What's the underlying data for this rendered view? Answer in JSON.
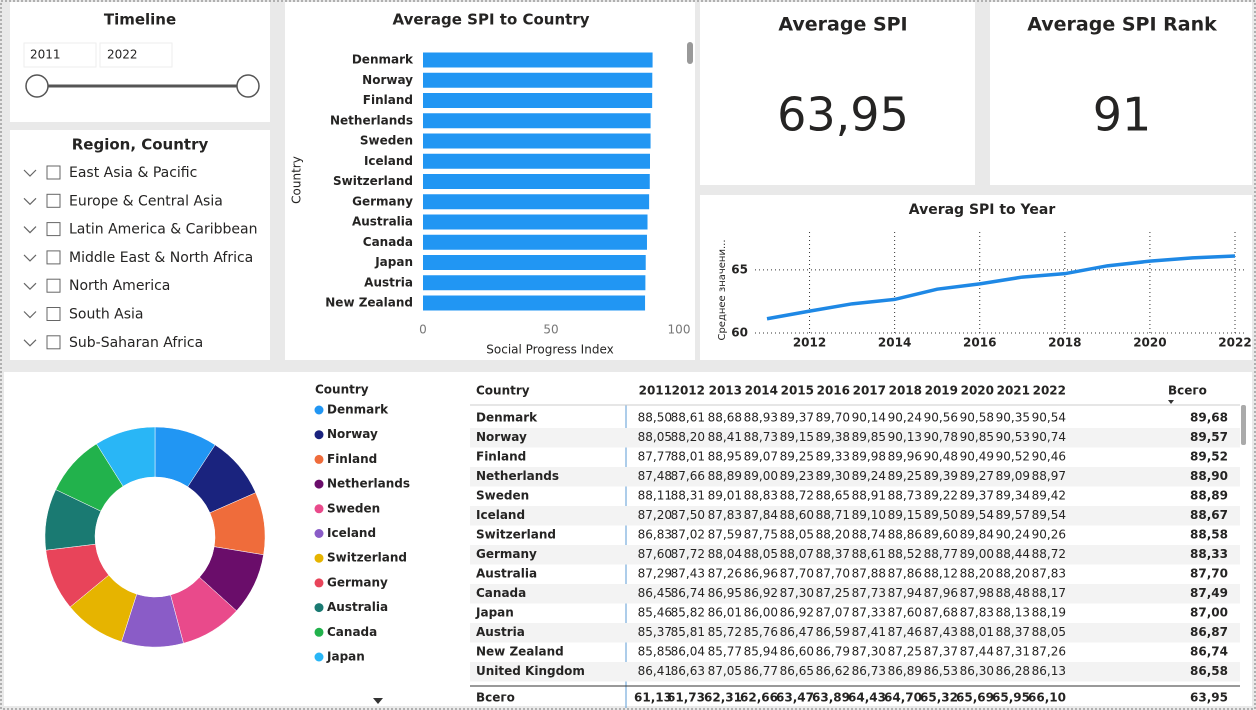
{
  "timeline": {
    "title": "Timeline",
    "start": "2011",
    "end": "2022"
  },
  "region_slicer": {
    "title": "Region, Country",
    "items": [
      "East Asia & Pacific",
      "Europe & Central Asia",
      "Latin America & Caribbean",
      "Middle East & North Africa",
      "North America",
      "South Asia",
      "Sub-Saharan Africa"
    ]
  },
  "cards": [
    {
      "title": "Average SPI",
      "value": "63,95"
    },
    {
      "title": "Average SPI Rank",
      "value": "91"
    }
  ],
  "chart_data": [
    {
      "type": "hbar",
      "title": "Average SPI to Country",
      "x_label": "Social Progress Index",
      "y_label": "Country",
      "color": "#2196f3",
      "categories": [
        "Denmark",
        "Norway",
        "Finland",
        "Netherlands",
        "Sweden",
        "Iceland",
        "Switzerland",
        "Germany",
        "Australia",
        "Canada",
        "Japan",
        "Austria",
        "New Zealand"
      ],
      "values": [
        89.68,
        89.57,
        89.52,
        88.9,
        88.89,
        88.67,
        88.58,
        88.33,
        87.7,
        87.49,
        87.0,
        86.87,
        86.74
      ],
      "xlim": [
        0,
        100
      ],
      "xticks": [
        0,
        50,
        100
      ]
    },
    {
      "type": "line",
      "title": "Averag SPI to Year",
      "y_label": "Среднее значени...",
      "color": "#1e88e5",
      "x": [
        2011,
        2012,
        2013,
        2014,
        2015,
        2016,
        2017,
        2018,
        2019,
        2020,
        2021,
        2022
      ],
      "values": [
        61.13,
        61.73,
        62.31,
        62.66,
        63.47,
        63.89,
        64.43,
        64.7,
        65.32,
        65.69,
        65.95,
        66.1
      ],
      "xlim": [
        2011,
        2022
      ],
      "xticks": [
        2012,
        2014,
        2016,
        2018,
        2020,
        2022
      ],
      "ylim": [
        60,
        68
      ],
      "yticks": [
        60,
        65
      ],
      "grid": true
    },
    {
      "type": "donut",
      "legend_title": "Country",
      "categories": [
        "Denmark",
        "Norway",
        "Finland",
        "Netherlands",
        "Sweden",
        "Iceland",
        "Switzerland",
        "Germany",
        "Australia",
        "Canada",
        "Japan"
      ],
      "values": [
        89.68,
        89.57,
        89.52,
        88.9,
        88.89,
        88.67,
        88.58,
        88.33,
        87.7,
        87.49,
        87.0
      ],
      "colors": [
        "#2196f3",
        "#1a237e",
        "#ef6c3b",
        "#6a0d6a",
        "#e94a8b",
        "#8a5cc7",
        "#e6b400",
        "#e8445a",
        "#1a7a72",
        "#22b24c",
        "#29b6f6"
      ]
    }
  ],
  "table": {
    "header": [
      "Country",
      "2011",
      "2012",
      "2013",
      "2014",
      "2015",
      "2016",
      "2017",
      "2018",
      "2019",
      "2020",
      "2021",
      "2022",
      "Всего"
    ],
    "rows": [
      [
        "Denmark",
        "88,50",
        "88,61",
        "88,68",
        "88,93",
        "89,37",
        "89,70",
        "90,14",
        "90,24",
        "90,56",
        "90,58",
        "90,35",
        "90,54",
        "89,68"
      ],
      [
        "Norway",
        "88,05",
        "88,20",
        "88,41",
        "88,73",
        "89,15",
        "89,38",
        "89,85",
        "90,13",
        "90,78",
        "90,85",
        "90,53",
        "90,74",
        "89,57"
      ],
      [
        "Finland",
        "87,77",
        "88,01",
        "88,95",
        "89,07",
        "89,25",
        "89,33",
        "89,98",
        "89,96",
        "90,48",
        "90,49",
        "90,52",
        "90,46",
        "89,52"
      ],
      [
        "Netherlands",
        "87,48",
        "87,66",
        "88,89",
        "89,00",
        "89,23",
        "89,30",
        "89,24",
        "89,25",
        "89,39",
        "89,27",
        "89,09",
        "88,97",
        "88,90"
      ],
      [
        "Sweden",
        "88,11",
        "88,31",
        "89,01",
        "88,83",
        "88,72",
        "88,65",
        "88,91",
        "88,73",
        "89,22",
        "89,37",
        "89,34",
        "89,42",
        "88,89"
      ],
      [
        "Iceland",
        "87,20",
        "87,50",
        "87,83",
        "87,84",
        "88,60",
        "88,71",
        "89,10",
        "89,15",
        "89,50",
        "89,54",
        "89,57",
        "89,54",
        "88,67"
      ],
      [
        "Switzerland",
        "86,83",
        "87,02",
        "87,59",
        "87,75",
        "88,05",
        "88,20",
        "88,74",
        "88,86",
        "89,60",
        "89,84",
        "90,24",
        "90,26",
        "88,58"
      ],
      [
        "Germany",
        "87,60",
        "87,72",
        "88,04",
        "88,05",
        "88,07",
        "88,37",
        "88,61",
        "88,52",
        "88,77",
        "89,00",
        "88,44",
        "88,72",
        "88,33"
      ],
      [
        "Australia",
        "87,29",
        "87,43",
        "87,26",
        "86,96",
        "87,70",
        "87,70",
        "87,88",
        "87,86",
        "88,12",
        "88,20",
        "88,20",
        "87,83",
        "87,70"
      ],
      [
        "Canada",
        "86,45",
        "86,74",
        "86,95",
        "86,92",
        "87,30",
        "87,25",
        "87,73",
        "87,94",
        "87,96",
        "87,98",
        "88,48",
        "88,17",
        "87,49"
      ],
      [
        "Japan",
        "85,46",
        "85,82",
        "86,01",
        "86,00",
        "86,92",
        "87,07",
        "87,33",
        "87,60",
        "87,68",
        "87,83",
        "88,13",
        "88,19",
        "87,00"
      ],
      [
        "Austria",
        "85,37",
        "85,81",
        "85,72",
        "85,76",
        "86,47",
        "86,59",
        "87,41",
        "87,46",
        "87,43",
        "88,01",
        "88,37",
        "88,05",
        "86,87"
      ],
      [
        "New Zealand",
        "85,85",
        "86,04",
        "85,77",
        "85,94",
        "86,60",
        "86,79",
        "87,30",
        "87,25",
        "87,37",
        "87,44",
        "87,31",
        "87,26",
        "86,74"
      ],
      [
        "United Kingdom",
        "86,41",
        "86,63",
        "87,05",
        "86,77",
        "86,65",
        "86,62",
        "86,73",
        "86,89",
        "86,53",
        "86,30",
        "86,28",
        "86,13",
        "86,58"
      ]
    ],
    "total": [
      "Всего",
      "61,13",
      "61,73",
      "62,31",
      "62,66",
      "63,47",
      "63,89",
      "64,43",
      "64,70",
      "65,32",
      "65,69",
      "65,95",
      "66,10",
      "63,95"
    ]
  }
}
